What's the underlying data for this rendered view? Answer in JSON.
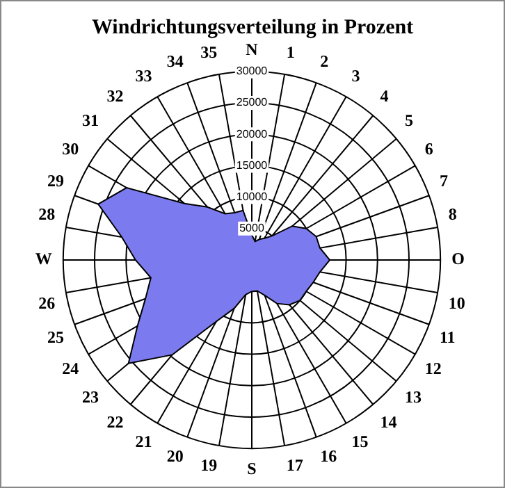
{
  "chart_data": {
    "type": "radar",
    "title": "Windrichtungsverteilung in Prozent",
    "categories": [
      "N",
      "1",
      "2",
      "3",
      "4",
      "5",
      "6",
      "7",
      "8",
      "O",
      "10",
      "11",
      "12",
      "13",
      "14",
      "15",
      "16",
      "17",
      "S",
      "19",
      "20",
      "21",
      "22",
      "23",
      "24",
      "25",
      "26",
      "W",
      "28",
      "29",
      "30",
      "31",
      "32",
      "33",
      "34",
      "35"
    ],
    "series": [
      {
        "color": "#7b7bef",
        "values": [
          4000,
          3000,
          3500,
          4000,
          5000,
          8400,
          10000,
          10900,
          11000,
          12400,
          11000,
          10400,
          10000,
          10000,
          9300,
          8000,
          6000,
          5000,
          5000,
          5600,
          8200,
          11300,
          19700,
          25600,
          21000,
          18000,
          16300,
          18500,
          21000,
          26000,
          23000,
          14000,
          11000,
          8500,
          8000,
          8000
        ]
      }
    ],
    "ylim": [
      0,
      30000
    ],
    "yticks": [
      5000,
      10000,
      15000,
      20000,
      25000,
      30000
    ],
    "grid": true,
    "legend": false,
    "marker": "none"
  }
}
